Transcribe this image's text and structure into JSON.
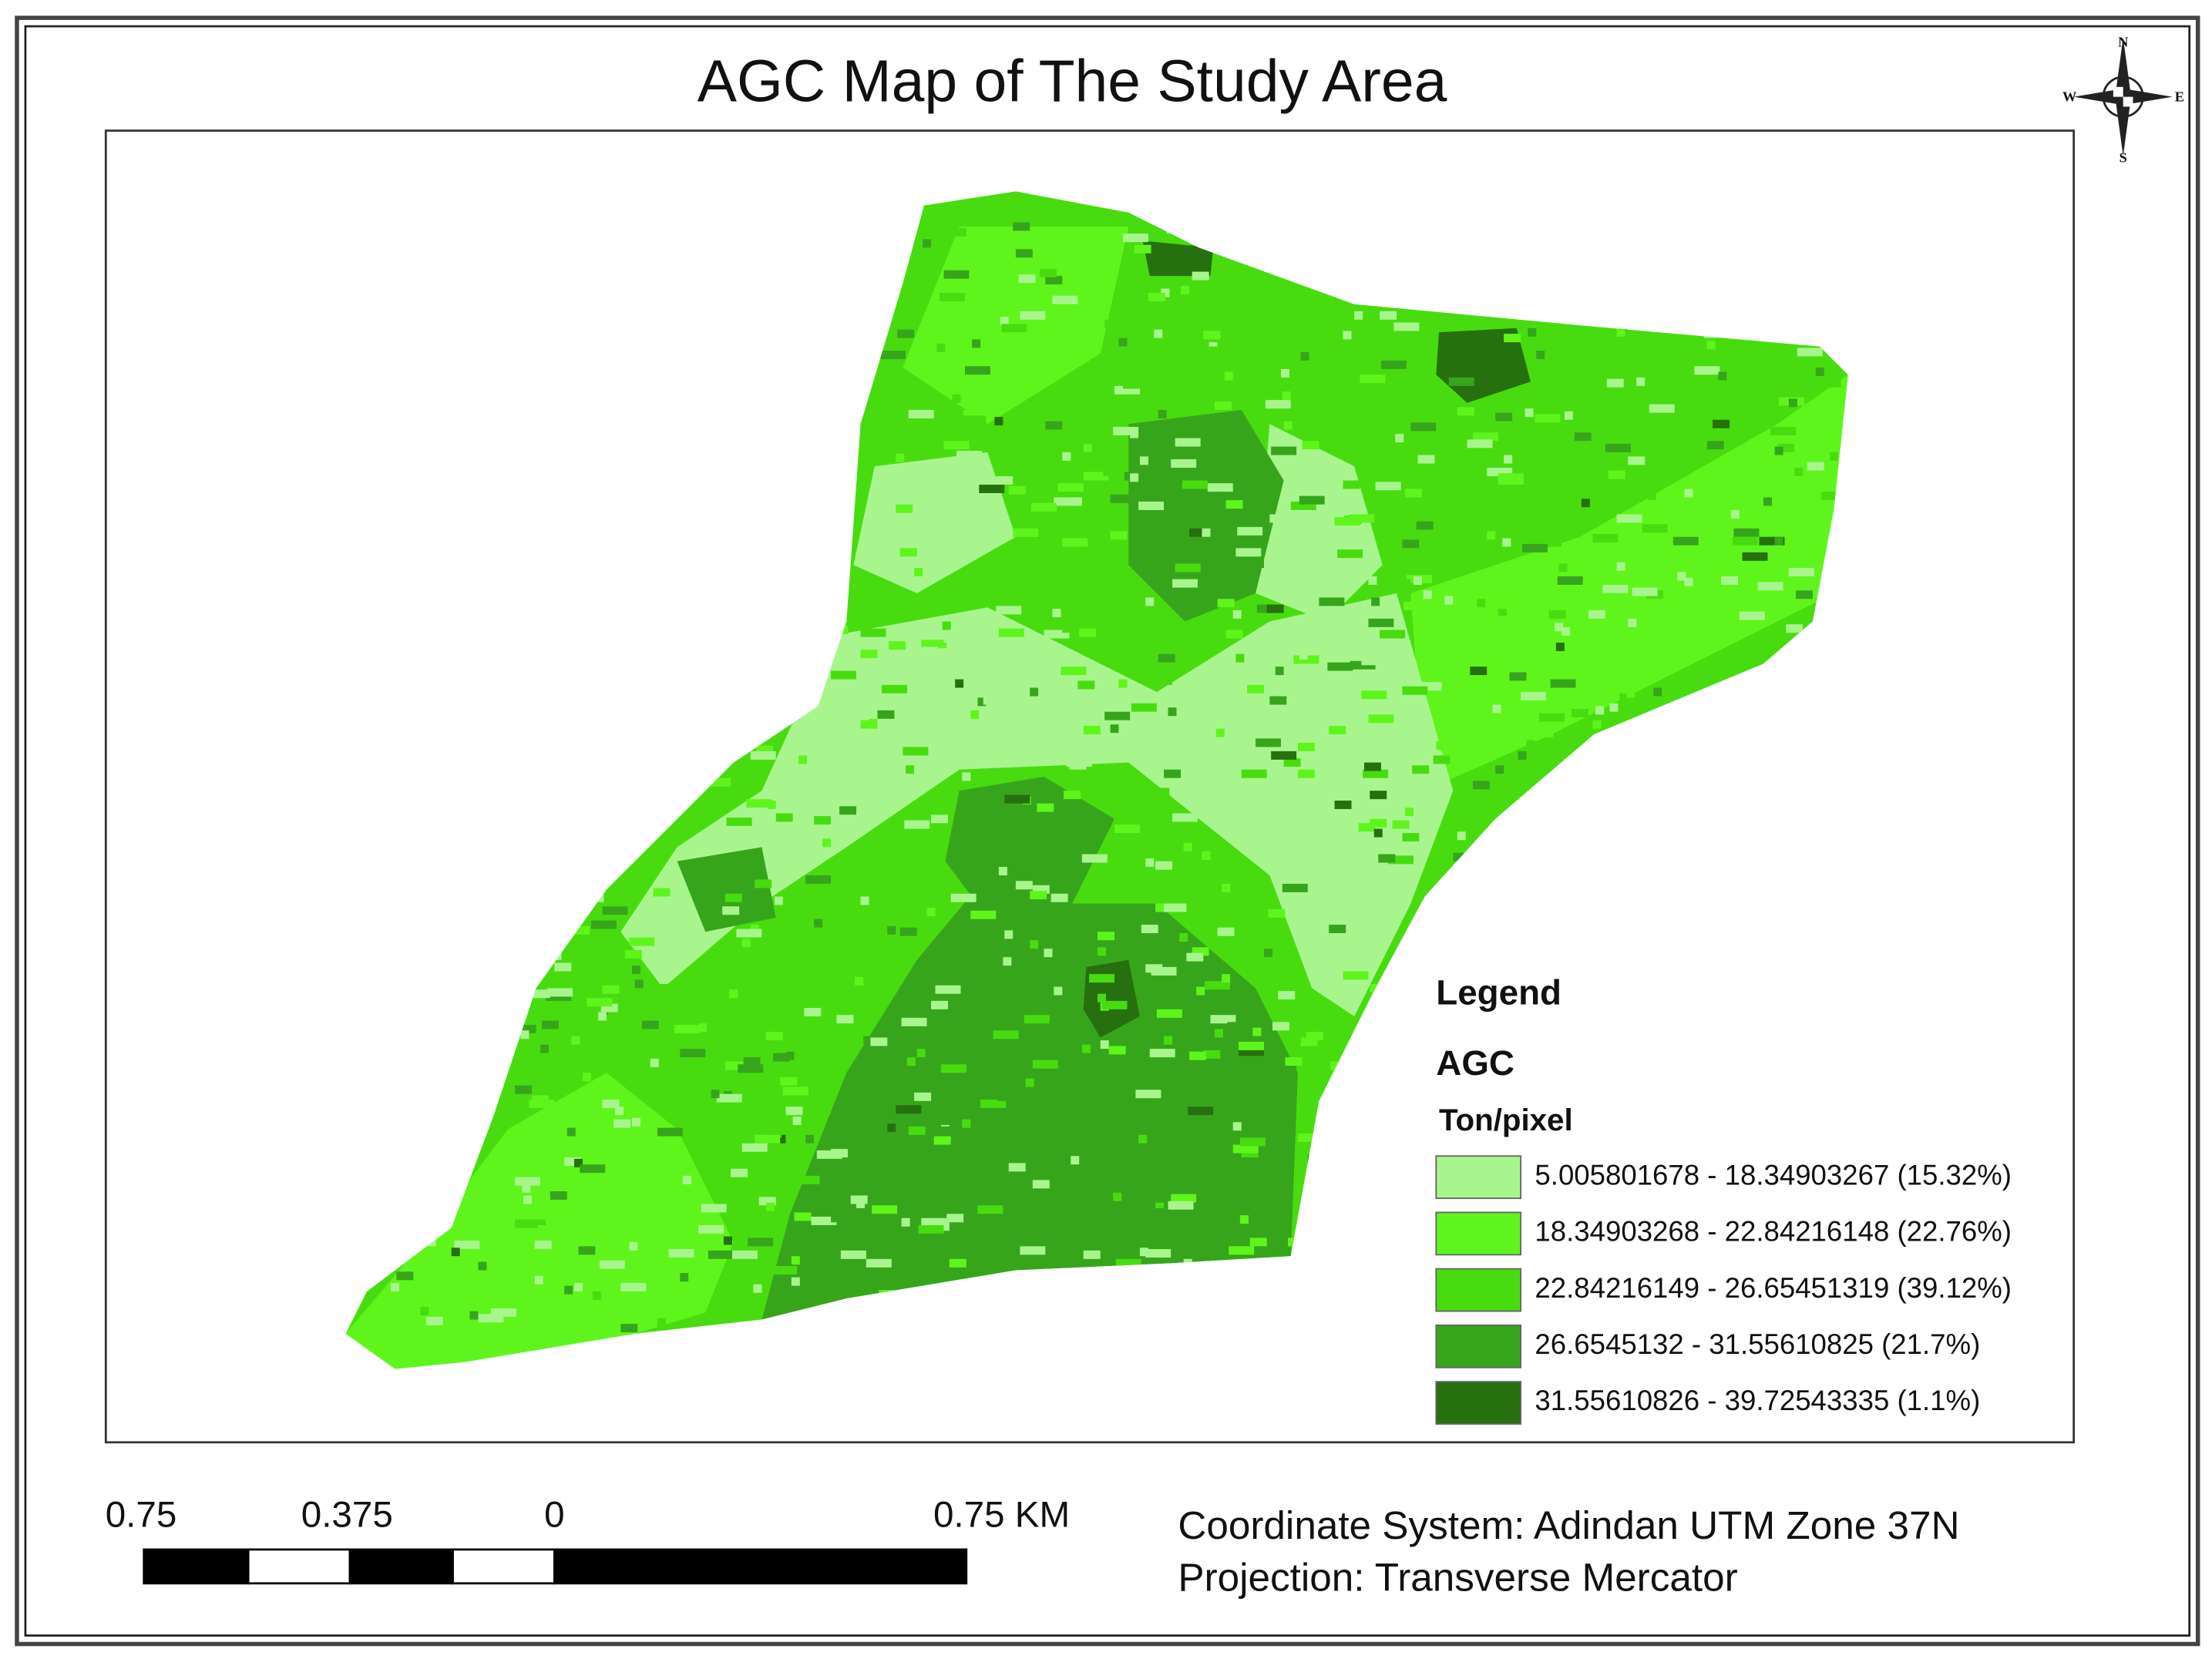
{
  "title": "AGC Map of The Study Area",
  "compass": {
    "north": "N",
    "south": "S",
    "west": "W",
    "east": "E"
  },
  "legend": {
    "title": "Legend",
    "layer": "AGC",
    "unit": "Ton/pixel",
    "items": [
      {
        "label": "5.005801678 - 18.34903267 (15.32%)",
        "color": "#a8f58e"
      },
      {
        "label": "18.34903268 - 22.84216148 (22.76%)",
        "color": "#5ff51c"
      },
      {
        "label": "22.84216149 - 26.65451319 (39.12%)",
        "color": "#48dc10"
      },
      {
        "label": "26.6545132 - 31.55610825 (21.7%)",
        "color": "#37a51c"
      },
      {
        "label": "31.55610826 - 39.72543335 (1.1%)",
        "color": "#27700f"
      }
    ]
  },
  "scale_bar": {
    "labels": [
      "0.75",
      "0.375",
      "0",
      "0.75 KM"
    ]
  },
  "coordinate_system": "Coordinate System: Adindan UTM Zone 37N",
  "projection": "Projection: Transverse Mercator"
}
